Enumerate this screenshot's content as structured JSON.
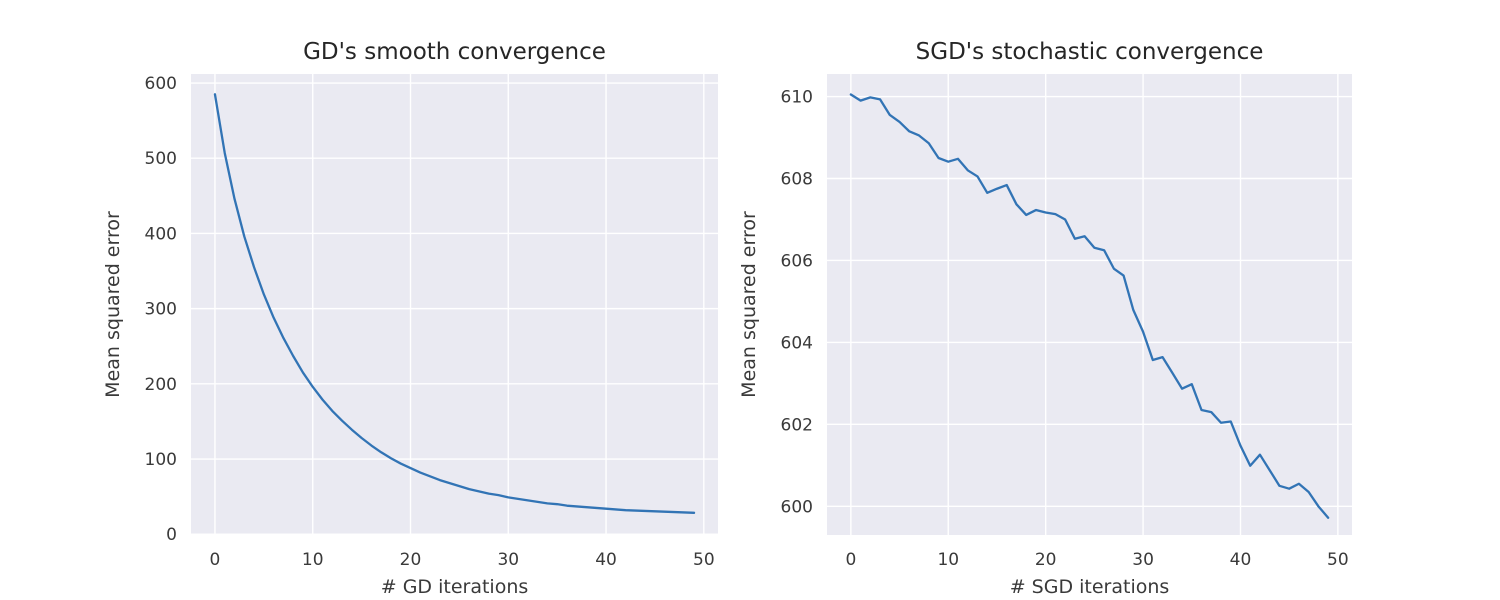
{
  "chart_data": [
    {
      "type": "line",
      "title": "GD's smooth convergence",
      "xlabel": "# GD iterations",
      "ylabel": "Mean squared error",
      "xlim": [
        -2.45,
        51.45
      ],
      "ylim": [
        -1,
        612
      ],
      "xticks": [
        0,
        10,
        20,
        30,
        40,
        50
      ],
      "yticks": [
        0,
        100,
        200,
        300,
        400,
        500,
        600
      ],
      "grid": true,
      "series": [
        {
          "color": "#3274b5",
          "x": [
            0,
            1,
            2,
            3,
            4,
            5,
            6,
            7,
            8,
            9,
            10,
            11,
            12,
            13,
            14,
            15,
            16,
            17,
            18,
            19,
            20,
            21,
            22,
            23,
            24,
            25,
            26,
            27,
            28,
            29,
            30,
            31,
            32,
            33,
            34,
            35,
            36,
            37,
            38,
            39,
            40,
            41,
            42,
            43,
            44,
            45,
            46,
            47,
            48,
            49
          ],
          "y": [
            585,
            507,
            446,
            396,
            355,
            319,
            288,
            261,
            237,
            215,
            196,
            179,
            164,
            151,
            139,
            128,
            118,
            109,
            101,
            94,
            88,
            82,
            77,
            72,
            68,
            64,
            60,
            57,
            54,
            52,
            49,
            47,
            45,
            43,
            41,
            40,
            38,
            37,
            36,
            35,
            34,
            33,
            32,
            31.5,
            31,
            30.5,
            30,
            29.5,
            29,
            28.5
          ]
        }
      ]
    },
    {
      "type": "line",
      "title": "SGD's stochastic convergence",
      "xlabel": "# SGD iterations",
      "ylabel": "Mean squared error",
      "xlim": [
        -2.45,
        51.45
      ],
      "ylim": [
        599.3,
        610.55
      ],
      "xticks": [
        0,
        10,
        20,
        30,
        40,
        50
      ],
      "yticks": [
        600,
        602,
        604,
        606,
        608,
        610
      ],
      "grid": true,
      "series": [
        {
          "color": "#3274b5",
          "x": [
            0,
            1,
            2,
            3,
            4,
            5,
            6,
            7,
            8,
            9,
            10,
            11,
            12,
            13,
            14,
            15,
            16,
            17,
            18,
            19,
            20,
            21,
            22,
            23,
            24,
            25,
            26,
            27,
            28,
            29,
            30,
            31,
            32,
            33,
            34,
            35,
            36,
            37,
            38,
            39,
            40,
            41,
            42,
            43,
            44,
            45,
            46,
            47,
            48,
            49
          ],
          "y": [
            610.05,
            609.9,
            609.98,
            609.93,
            609.55,
            609.38,
            609.15,
            609.05,
            608.86,
            608.5,
            608.41,
            608.48,
            608.2,
            608.05,
            607.65,
            607.75,
            607.84,
            607.37,
            607.11,
            607.23,
            607.17,
            607.13,
            607.0,
            606.53,
            606.59,
            606.31,
            606.25,
            605.8,
            605.63,
            604.79,
            604.26,
            603.57,
            603.64,
            603.26,
            602.87,
            602.98,
            602.35,
            602.3,
            602.04,
            602.07,
            601.48,
            600.99,
            601.26,
            600.88,
            600.5,
            600.43,
            600.55,
            600.35,
            600.0,
            599.72
          ]
        }
      ]
    }
  ]
}
